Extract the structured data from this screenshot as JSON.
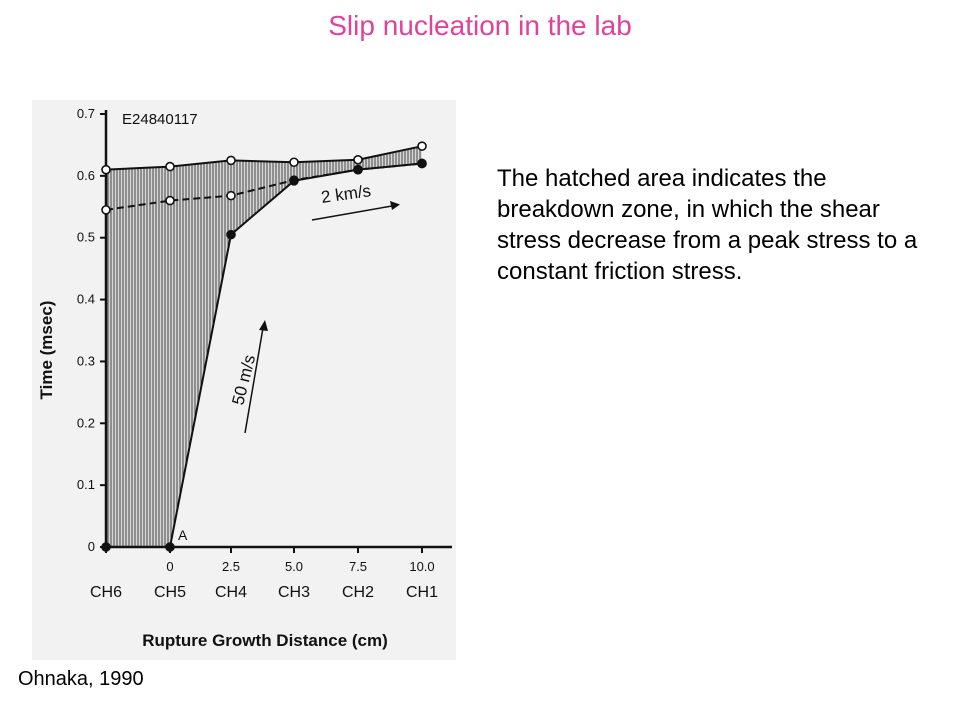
{
  "slide": {
    "title": "Slip nucleation in the lab",
    "description": "The hatched area indicates the breakdown zone, in which the shear stress decrease from a peak stress to a constant friction stress.",
    "citation": "Ohnaka, 1990"
  },
  "colors": {
    "title": "#e0429a",
    "figure_background": "#f2f2f2",
    "hatch": "#555555",
    "ink": "#111111"
  },
  "chart_data": {
    "type": "line",
    "experiment_label": "E24840117",
    "ylabel": "Time (msec)",
    "xlabel": "Rupture Growth Distance (cm)",
    "ylim": [
      0,
      0.7
    ],
    "y_ticks": [
      "0",
      "0.1",
      "0.2",
      "0.3",
      "0.4",
      "0.5",
      "0.6",
      "0.7"
    ],
    "channels": [
      "CH6",
      "CH5",
      "CH4",
      "CH3",
      "CH2",
      "CH1"
    ],
    "distance_labels": [
      "",
      "0",
      "2.5",
      "5.0",
      "7.5",
      "10.0"
    ],
    "series": [
      {
        "values": [
          0.61,
          0.615,
          0.625,
          0.622,
          0.626,
          0.648
        ],
        "marker": "open"
      },
      {
        "values": [
          0.545,
          0.56,
          0.568,
          0.593,
          0.61,
          0.62
        ],
        "marker": "open",
        "dashed": true
      },
      {
        "values": [
          0.0,
          0.0,
          0.505,
          0.592,
          0.61,
          0.62
        ],
        "marker": "filled"
      }
    ],
    "annotations": {
      "point_a": "A",
      "velocity_fast": "2 km/s",
      "velocity_slow": "50 m/s"
    }
  }
}
